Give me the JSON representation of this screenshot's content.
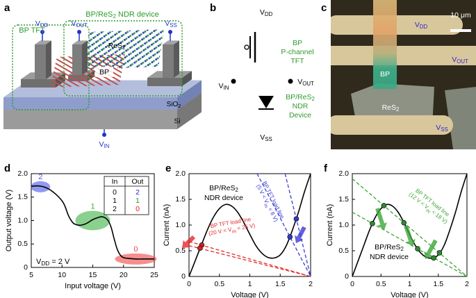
{
  "panel_a": {
    "label": "a",
    "bp_tft": "BP TFT",
    "ndr_device": [
      "BP/ReS",
      "2",
      " NDR device"
    ],
    "vdd": [
      "V",
      "DD"
    ],
    "vout": [
      "V",
      "OUT"
    ],
    "vss": [
      "V",
      "SS"
    ],
    "res2": [
      "ReS",
      "2"
    ],
    "bp": "BP",
    "sio2": [
      "SiO",
      "2"
    ],
    "si": "Si",
    "vin": [
      "V",
      "IN"
    ]
  },
  "panel_b": {
    "label": "b",
    "vdd": [
      "V",
      "DD"
    ],
    "tft": [
      "BP",
      "P-channel",
      "TFT"
    ],
    "vin": [
      "V",
      "IN"
    ],
    "vout": [
      "V",
      "OUT"
    ],
    "ndr": [
      [
        "BP/ReS",
        "2"
      ],
      "NDR",
      "Device"
    ],
    "vss": [
      "V",
      "SS"
    ]
  },
  "panel_c": {
    "label": "c",
    "vdd": [
      "V",
      "DD"
    ],
    "scale_bar": "10 μm",
    "vout": [
      "V",
      "OUT"
    ],
    "bp": "BP",
    "res2": [
      "ReS",
      "2"
    ],
    "vss": [
      "V",
      "SS"
    ]
  },
  "chart_data": [
    {
      "type": "line",
      "label": "d",
      "xlabel": "Input voltage (V)",
      "ylabel": "Output voltage (V)",
      "xlim": [
        5,
        25
      ],
      "ylim": [
        0,
        2
      ],
      "xticks": [
        5,
        10,
        15,
        20,
        25
      ],
      "yticks": [
        0,
        0.5,
        {
          "value": 1,
          "label": "1.0"
        },
        1.5,
        {
          "value": 2,
          "label": "2.0"
        }
      ],
      "series": [
        {
          "color": "#000000",
          "x": [
            5,
            6,
            7,
            8,
            9,
            10,
            10.5,
            11,
            11.5,
            12,
            13,
            14,
            15,
            16,
            16.5,
            17,
            17.5,
            18,
            18.5,
            19,
            19.5,
            20,
            21,
            22,
            23,
            24,
            25
          ],
          "values": [
            1.73,
            1.74,
            1.72,
            1.66,
            1.56,
            1.42,
            1.3,
            1.12,
            1.0,
            0.93,
            0.9,
            0.94,
            1.02,
            1.07,
            1.08,
            1.06,
            1.0,
            0.85,
            0.6,
            0.38,
            0.26,
            0.21,
            0.19,
            0.18,
            0.18,
            0.18,
            0.18
          ]
        }
      ],
      "states": [
        {
          "label": "2",
          "x": 6.5,
          "y": 1.72,
          "color": "#4a55e8"
        },
        {
          "label": "1",
          "x": 15,
          "y": 1.0,
          "color": "#3cb043"
        },
        {
          "label": "0",
          "x": 22,
          "y": 0.18,
          "color": "#ee4444"
        }
      ],
      "annotation": [
        "V",
        "DD",
        " = 2 V"
      ],
      "table": {
        "header": [
          "In",
          "Out"
        ],
        "rows": [
          [
            0,
            2
          ],
          [
            1,
            1
          ],
          [
            2,
            0
          ]
        ],
        "out_colors": [
          "#2b2bd9",
          "#1e9e1e",
          "#e02020"
        ]
      }
    },
    {
      "type": "line",
      "label": "e",
      "xlabel": "Voltage (V)",
      "ylabel": "Current (nA)",
      "xlim": [
        0,
        2
      ],
      "ylim": [
        0,
        2
      ],
      "xticks": [
        0,
        0.5,
        1,
        1.5,
        2
      ],
      "yticks": [
        0,
        0.5,
        {
          "value": 1,
          "label": "1.0"
        },
        1.5,
        {
          "value": 2,
          "label": "2.0"
        }
      ],
      "series": [
        {
          "color": "#000000",
          "x": [
            0,
            0.1,
            0.2,
            0.3,
            0.4,
            0.5,
            0.6,
            0.7,
            0.8,
            0.9,
            1.0,
            1.1,
            1.2,
            1.3,
            1.4,
            1.5,
            1.6,
            1.7,
            1.8,
            1.9,
            2.0
          ],
          "values": [
            0,
            0.3,
            0.6,
            0.9,
            1.15,
            1.32,
            1.4,
            1.37,
            1.25,
            1.05,
            0.82,
            0.6,
            0.45,
            0.37,
            0.36,
            0.42,
            0.6,
            0.9,
            1.25,
            1.65,
            2.0
          ]
        },
        {
          "color": "#e8262b",
          "dash": true,
          "x": [
            0,
            2
          ],
          "values": [
            0.68,
            0
          ]
        },
        {
          "color": "#e8262b",
          "dash": true,
          "x": [
            0,
            2
          ],
          "values": [
            0.6,
            0
          ]
        },
        {
          "color": "#3a3ad6",
          "dash": true,
          "x": [
            1.12,
            2
          ],
          "values": [
            2,
            0
          ]
        },
        {
          "color": "#3a3ad6",
          "dash": true,
          "x": [
            1.58,
            2
          ],
          "values": [
            2,
            0
          ]
        },
        {
          "color": "#c8252a",
          "marker": true,
          "x": [
            0.21,
            0.18
          ],
          "values": [
            0.61,
            0.55
          ]
        },
        {
          "color": "#2f3cc0",
          "marker": true,
          "x": [
            1.66,
            1.765
          ],
          "values": [
            0.77,
            1.12
          ]
        }
      ],
      "annotations": [
        {
          "color": "#000000",
          "lines": [
            [
              "BP/ReS",
              "2"
            ],
            "NDR device"
          ]
        },
        {
          "color": "#e8262b",
          "lines": [
            "BP TFT load line",
            [
              "(20 V < V",
              "IN",
              " < 25 V)"
            ]
          ]
        },
        {
          "color": "#3a3ad6",
          "lines": [
            "BP TFT load line",
            [
              "(5 V < V",
              "IN",
              " < 8 V)"
            ]
          ]
        }
      ]
    },
    {
      "type": "line",
      "label": "f",
      "xlabel": "Voltage (V)",
      "ylabel": "Current (nA)",
      "xlim": [
        0,
        2
      ],
      "ylim": [
        0,
        2
      ],
      "xticks": [
        0,
        0.5,
        1,
        1.5,
        2
      ],
      "yticks": [
        0,
        0.5,
        {
          "value": 1,
          "label": "1.0"
        },
        1.5,
        {
          "value": 2,
          "label": "2.0"
        }
      ],
      "series": [
        {
          "color": "#000000",
          "x": [
            0,
            0.1,
            0.2,
            0.3,
            0.4,
            0.5,
            0.6,
            0.7,
            0.8,
            0.9,
            1.0,
            1.1,
            1.2,
            1.3,
            1.4,
            1.5,
            1.6,
            1.7,
            1.8,
            1.9,
            2.0
          ],
          "values": [
            0,
            0.3,
            0.6,
            0.9,
            1.15,
            1.32,
            1.4,
            1.37,
            1.25,
            1.05,
            0.82,
            0.6,
            0.45,
            0.37,
            0.36,
            0.42,
            0.6,
            0.9,
            1.25,
            1.65,
            2.0
          ]
        },
        {
          "color": "#3aa635",
          "dash": true,
          "x": [
            0,
            2
          ],
          "values": [
            1.9,
            0
          ]
        },
        {
          "color": "#3aa635",
          "dash": true,
          "x": [
            0,
            2
          ],
          "values": [
            1.25,
            0
          ]
        },
        {
          "color": "#2e8a2e",
          "marker": true,
          "x": [
            0.35,
            0.55,
            0.9,
            1.14,
            1.42,
            1.52
          ],
          "values": [
            1.03,
            1.38,
            1.045,
            0.54,
            0.36,
            0.46
          ]
        }
      ],
      "annotations": [
        {
          "color": "#3aa635",
          "lines": [
            "BP TFT load line",
            [
              "(12 V < V",
              "IN",
              " < 18 V)"
            ]
          ]
        },
        {
          "color": "#000000",
          "lines": [
            [
              "BP/ReS",
              "2"
            ],
            "NDR device"
          ]
        }
      ]
    }
  ]
}
